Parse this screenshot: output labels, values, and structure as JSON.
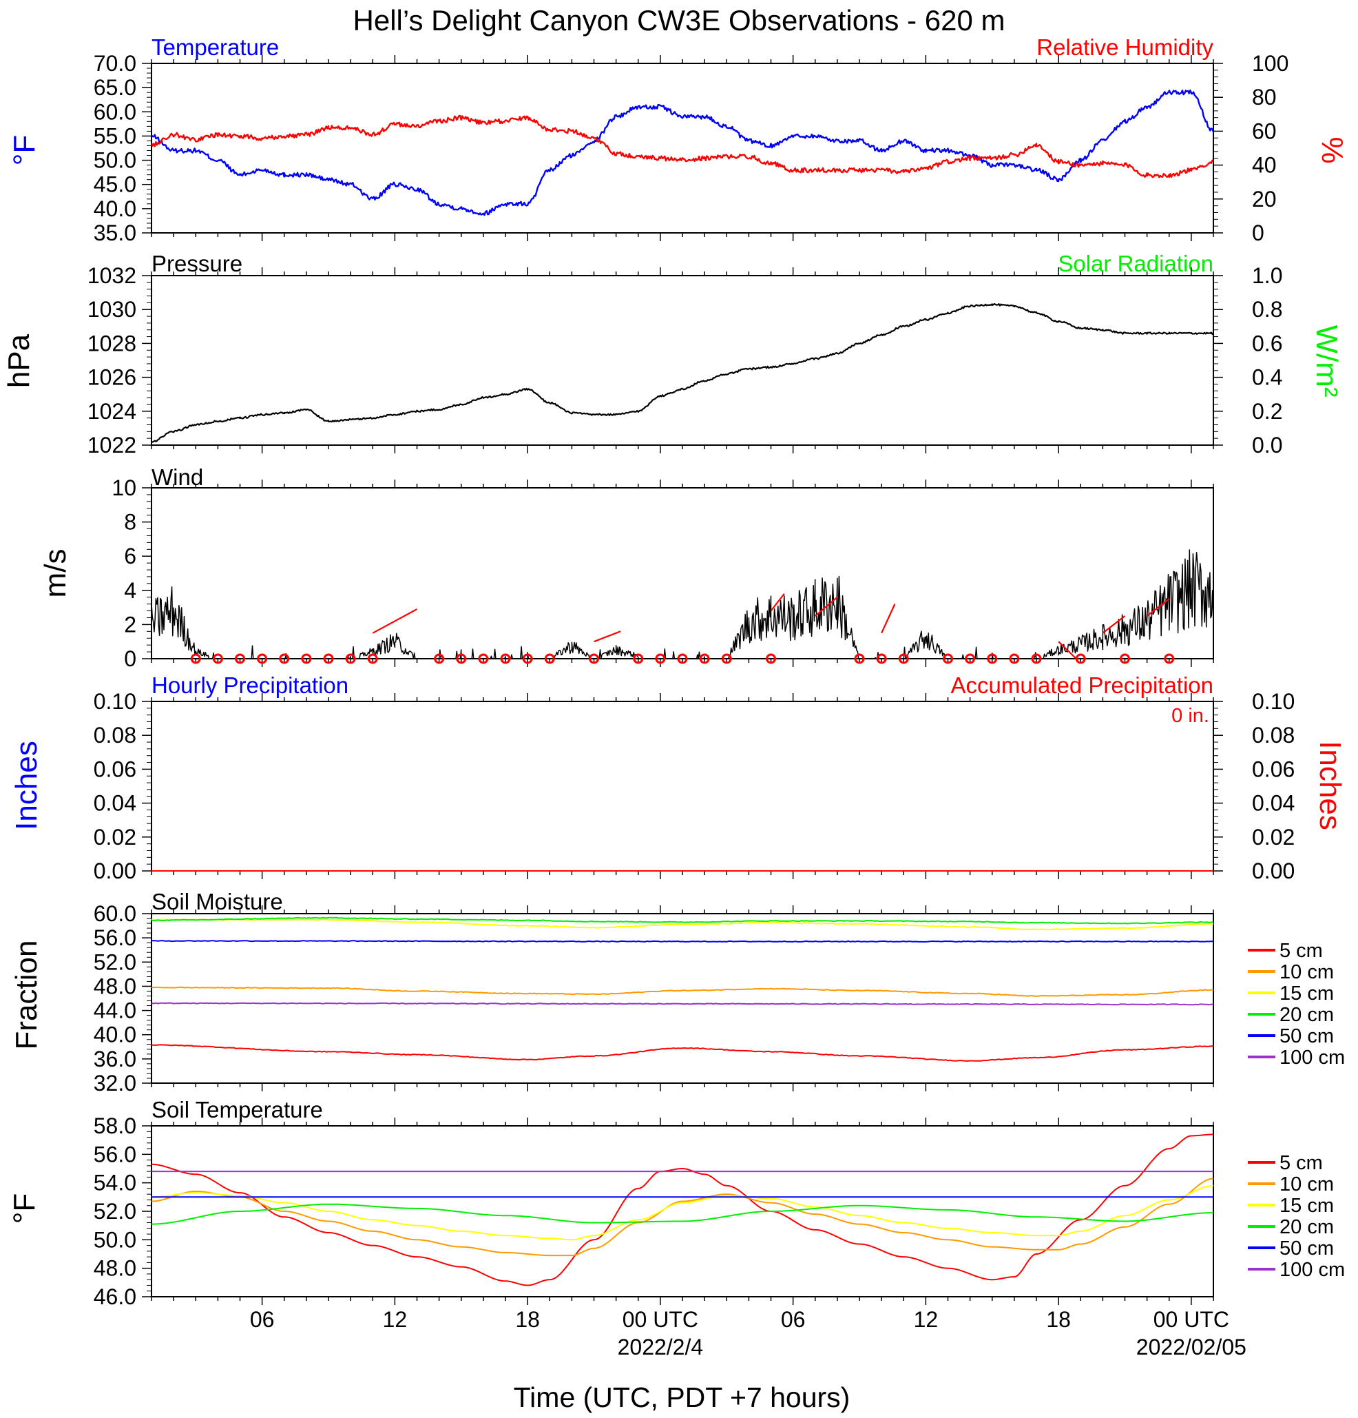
{
  "title": "Hell’s Delight Canyon CW3E Observations - 620 m",
  "xaxis": {
    "label": "Time (UTC, PDT +7 hours)",
    "tick_labels": [
      "06",
      "12",
      "18",
      "00 UTC",
      "06",
      "12",
      "18",
      "00 UTC"
    ],
    "date_labels": [
      "2022/2/4",
      "2022/02/05"
    ]
  },
  "colors": {
    "blue": "#0000ff",
    "red": "#ff0000",
    "green": "#00ee00",
    "black": "#000000",
    "orange": "#ff9900",
    "yellow": "#ffff00",
    "purple": "#9933cc"
  },
  "panels": {
    "temperature": {
      "title_left": "Temperature",
      "title_right": "Relative Humidity",
      "ylabel_left": "°F",
      "ylabel_right": "%",
      "yticks_left": [
        "70.0",
        "65.0",
        "60.0",
        "55.0",
        "50.0",
        "45.0",
        "40.0",
        "35.0"
      ],
      "yticks_right": [
        "100",
        "80",
        "60",
        "40",
        "20",
        "0"
      ]
    },
    "pressure": {
      "title_left": "Pressure",
      "title_right": "Solar Radiation",
      "ylabel_left": "hPa",
      "ylabel_right": "W/m²",
      "yticks_left": [
        "1032",
        "1030",
        "1028",
        "1026",
        "1024",
        "1022"
      ],
      "yticks_right": [
        "1.0",
        "0.8",
        "0.6",
        "0.4",
        "0.2",
        "0.0"
      ]
    },
    "wind": {
      "title_left": "Wind",
      "ylabel_left": "m/s",
      "yticks_left": [
        "10",
        "8",
        "6",
        "4",
        "2",
        "0"
      ]
    },
    "precip": {
      "title_left": "Hourly Precipitation",
      "title_right": "Accumulated Precipitation",
      "accum_text": "0 in.",
      "ylabel_left": "Inches",
      "ylabel_right": "Inches",
      "yticks_left": [
        "0.10",
        "0.08",
        "0.06",
        "0.04",
        "0.02",
        "0.00"
      ],
      "yticks_right": [
        "0.10",
        "0.08",
        "0.06",
        "0.04",
        "0.02",
        "0.00"
      ]
    },
    "soil_moisture": {
      "title_left": "Soil Moisture",
      "ylabel_left": "Fraction",
      "yticks_left": [
        "60.0",
        "56.0",
        "52.0",
        "48.0",
        "44.0",
        "40.0",
        "36.0",
        "32.0"
      ],
      "legend": [
        "5 cm",
        "10 cm",
        "15 cm",
        "20 cm",
        "50 cm",
        "100 cm"
      ]
    },
    "soil_temperature": {
      "title_left": "Soil Temperature",
      "ylabel_left": "°F",
      "yticks_left": [
        "58.0",
        "56.0",
        "54.0",
        "52.0",
        "50.0",
        "48.0",
        "46.0"
      ],
      "legend": [
        "5 cm",
        "10 cm",
        "15 cm",
        "20 cm",
        "50 cm",
        "100 cm"
      ]
    }
  },
  "chart_data": [
    {
      "type": "line",
      "title": "Temperature",
      "ylabel": "°F",
      "ylim": [
        35,
        70
      ],
      "y2label": "%",
      "y2lim": [
        0,
        100
      ],
      "x_unit": "hours since 2022-02-03 01 UTC",
      "xlim": [
        0,
        48
      ],
      "series": [
        {
          "name": "Temperature",
          "axis": "left",
          "color": "#0000ff",
          "x": [
            0,
            1,
            2,
            3,
            4,
            5,
            6,
            7,
            8,
            9,
            10,
            11,
            12,
            13,
            14,
            15,
            16,
            17,
            18,
            19,
            20,
            21,
            22,
            23,
            24,
            25,
            26,
            27,
            28,
            29,
            30,
            31,
            32,
            33,
            34,
            35,
            36,
            37,
            38,
            39,
            40,
            41,
            42,
            43,
            44,
            45,
            46,
            47,
            48
          ],
          "values": [
            55,
            52,
            52,
            50,
            47,
            48,
            47,
            47,
            46,
            45,
            42,
            45,
            44,
            41,
            40,
            39,
            41,
            41,
            48,
            51,
            54,
            59,
            61,
            61,
            59,
            59,
            57,
            54,
            53,
            55,
            55,
            54,
            54,
            52,
            54,
            52,
            52,
            51,
            49,
            49,
            48,
            46,
            50,
            54,
            58,
            61,
            64,
            64,
            56
          ]
        },
        {
          "name": "Relative Humidity",
          "axis": "right",
          "color": "#ff0000",
          "x": [
            0,
            1,
            2,
            3,
            4,
            5,
            6,
            7,
            8,
            9,
            10,
            11,
            12,
            13,
            14,
            15,
            16,
            17,
            18,
            19,
            20,
            21,
            22,
            23,
            24,
            25,
            26,
            27,
            28,
            29,
            30,
            31,
            32,
            33,
            34,
            35,
            36,
            37,
            38,
            39,
            40,
            41,
            42,
            43,
            44,
            45,
            46,
            47,
            48
          ],
          "values": [
            52,
            58,
            55,
            58,
            57,
            56,
            57,
            58,
            62,
            62,
            58,
            64,
            63,
            66,
            68,
            65,
            66,
            68,
            61,
            60,
            56,
            47,
            45,
            44,
            43,
            44,
            45,
            45,
            41,
            37,
            37,
            37,
            37,
            37,
            36,
            38,
            42,
            44,
            44,
            46,
            52,
            42,
            40,
            41,
            40,
            34,
            34,
            37,
            42
          ]
        }
      ]
    },
    {
      "type": "line",
      "title": "Pressure",
      "ylabel": "hPa",
      "ylim": [
        1022,
        1032
      ],
      "y2label": "W/m²",
      "y2lim": [
        0,
        1.0
      ],
      "x_unit": "hours since 2022-02-03 01 UTC",
      "xlim": [
        0,
        48
      ],
      "series": [
        {
          "name": "Pressure",
          "axis": "left",
          "color": "#000000",
          "x": [
            0,
            1,
            2,
            3,
            4,
            5,
            6,
            7,
            8,
            9,
            10,
            11,
            12,
            13,
            14,
            15,
            16,
            17,
            18,
            19,
            20,
            21,
            22,
            23,
            24,
            25,
            26,
            27,
            28,
            29,
            30,
            31,
            32,
            33,
            34,
            35,
            36,
            37,
            38,
            39,
            40,
            41,
            42,
            43,
            44,
            45,
            46,
            47,
            48
          ],
          "values": [
            1022.2,
            1022.8,
            1023.2,
            1023.4,
            1023.6,
            1023.8,
            1023.9,
            1024.1,
            1023.4,
            1023.5,
            1023.6,
            1023.8,
            1024.0,
            1024.1,
            1024.4,
            1024.8,
            1025.0,
            1025.3,
            1024.5,
            1023.9,
            1023.8,
            1023.8,
            1024.0,
            1024.9,
            1025.3,
            1025.8,
            1026.2,
            1026.5,
            1026.6,
            1026.8,
            1027.1,
            1027.4,
            1028.0,
            1028.5,
            1029.0,
            1029.4,
            1029.8,
            1030.2,
            1030.3,
            1030.2,
            1029.8,
            1029.3,
            1028.9,
            1028.8,
            1028.6,
            1028.6,
            1028.6,
            1028.6,
            1028.6
          ]
        }
      ]
    },
    {
      "type": "line",
      "title": "Wind",
      "ylabel": "m/s",
      "ylim": [
        0,
        10
      ],
      "x_unit": "hours since 2022-02-03 01 UTC",
      "xlim": [
        0,
        48
      ],
      "series": [
        {
          "name": "Wind speed",
          "color": "#000000",
          "x": [
            0,
            1,
            2,
            3,
            4,
            5,
            6,
            7,
            8,
            9,
            10,
            11,
            12,
            13,
            14,
            15,
            16,
            17,
            18,
            19,
            20,
            21,
            22,
            23,
            24,
            25,
            26,
            27,
            28,
            29,
            30,
            31,
            32,
            33,
            34,
            35,
            36,
            37,
            38,
            39,
            40,
            41,
            42,
            43,
            44,
            45,
            46,
            47,
            48
          ],
          "values": [
            2.5,
            3.3,
            0.5,
            0,
            0,
            0,
            0,
            0,
            0,
            0,
            0.5,
            1.2,
            0,
            0,
            0,
            0,
            0,
            0,
            0,
            0.9,
            0,
            0.6,
            0.2,
            0,
            0,
            0,
            0,
            2.5,
            3.0,
            2.8,
            3.5,
            4.0,
            0,
            0,
            0,
            1.5,
            0,
            0,
            0,
            0,
            0,
            0.6,
            1.0,
            1.5,
            2.0,
            2.6,
            3.8,
            4.8,
            4.5
          ]
        }
      ]
    },
    {
      "type": "line",
      "title": "Hourly Precipitation",
      "ylabel": "Inches",
      "ylim": [
        0,
        0.1
      ],
      "y2label": "Inches",
      "y2lim": [
        0,
        0.1
      ],
      "x_unit": "hours since 2022-02-03 01 UTC",
      "xlim": [
        0,
        48
      ],
      "series": [
        {
          "name": "Accumulated Precipitation",
          "axis": "right",
          "color": "#ff0000",
          "x": [
            0,
            48
          ],
          "values": [
            0,
            0
          ]
        }
      ]
    },
    {
      "type": "line",
      "title": "Soil Moisture",
      "ylabel": "Fraction",
      "ylim": [
        32,
        60
      ],
      "x_unit": "hours since 2022-02-03 01 UTC",
      "xlim": [
        0,
        48
      ],
      "series": [
        {
          "name": "5 cm",
          "color": "#ff0000",
          "x": [
            0,
            8,
            12,
            17,
            20,
            24,
            28,
            32,
            37,
            40,
            44,
            48
          ],
          "values": [
            38.3,
            37.2,
            36.7,
            35.9,
            36.5,
            37.8,
            37.2,
            36.5,
            35.7,
            36.2,
            37.5,
            38.1
          ]
        },
        {
          "name": "10 cm",
          "color": "#ff9900",
          "x": [
            0,
            8,
            12,
            17,
            20,
            24,
            28,
            32,
            37,
            40,
            44,
            48
          ],
          "values": [
            47.8,
            47.7,
            47.2,
            46.8,
            46.7,
            47.3,
            47.6,
            47.3,
            46.8,
            46.4,
            46.6,
            47.4
          ]
        },
        {
          "name": "15 cm",
          "color": "#ffff00",
          "x": [
            0,
            8,
            12,
            17,
            20,
            24,
            28,
            32,
            37,
            40,
            44,
            48
          ],
          "values": [
            59.0,
            59.0,
            58.6,
            58.0,
            57.7,
            58.2,
            58.5,
            58.3,
            57.8,
            57.4,
            57.6,
            58.3
          ]
        },
        {
          "name": "20 cm",
          "color": "#00ee00",
          "x": [
            0,
            8,
            12,
            17,
            20,
            24,
            28,
            32,
            37,
            40,
            44,
            48
          ],
          "values": [
            58.9,
            59.3,
            59.1,
            58.9,
            58.7,
            58.6,
            58.8,
            58.8,
            58.7,
            58.5,
            58.4,
            58.6
          ]
        },
        {
          "name": "50 cm",
          "color": "#0000ff",
          "x": [
            0,
            24,
            48
          ],
          "values": [
            55.5,
            55.4,
            55.4
          ]
        },
        {
          "name": "100 cm",
          "color": "#9933cc",
          "x": [
            0,
            24,
            48
          ],
          "values": [
            45.2,
            45.1,
            45.0
          ]
        }
      ]
    },
    {
      "type": "line",
      "title": "Soil Temperature",
      "ylabel": "°F",
      "ylim": [
        46,
        58
      ],
      "x_unit": "hours since 2022-02-03 01 UTC",
      "xlim": [
        0,
        48
      ],
      "series": [
        {
          "name": "5 cm",
          "color": "#ff0000",
          "x": [
            0,
            2,
            4,
            6,
            8,
            10,
            12,
            14,
            16,
            17,
            18,
            20,
            22,
            23,
            24,
            25,
            26,
            28,
            30,
            32,
            34,
            36,
            38,
            39,
            40,
            42,
            44,
            46,
            47,
            48
          ],
          "values": [
            55.3,
            54.6,
            53.3,
            51.6,
            50.5,
            49.6,
            48.8,
            48.1,
            47.1,
            46.8,
            47.2,
            50.0,
            53.6,
            54.8,
            55.0,
            54.6,
            53.8,
            52.0,
            50.7,
            49.7,
            48.8,
            48.0,
            47.2,
            47.4,
            49.0,
            51.4,
            53.8,
            56.4,
            57.3,
            57.4
          ]
        },
        {
          "name": "10 cm",
          "color": "#ff9900",
          "x": [
            0,
            2,
            4,
            6,
            8,
            10,
            12,
            14,
            16,
            18,
            19,
            20,
            22,
            24,
            26,
            28,
            30,
            32,
            34,
            36,
            38,
            40,
            41,
            42,
            44,
            46,
            48
          ],
          "values": [
            52.7,
            53.4,
            53.0,
            52.0,
            51.3,
            50.6,
            50.0,
            49.5,
            49.1,
            48.9,
            48.9,
            49.4,
            51.2,
            52.7,
            53.2,
            52.6,
            51.8,
            51.1,
            50.5,
            50.0,
            49.5,
            49.3,
            49.3,
            49.7,
            50.9,
            52.5,
            54.3
          ]
        },
        {
          "name": "15 cm",
          "color": "#ffff00",
          "x": [
            0,
            2,
            4,
            6,
            8,
            10,
            12,
            14,
            16,
            18,
            19,
            20,
            22,
            24,
            26,
            28,
            30,
            32,
            34,
            36,
            38,
            40,
            41,
            42,
            44,
            46,
            48
          ],
          "values": [
            53.0,
            53.3,
            53.1,
            52.6,
            52.0,
            51.4,
            51.0,
            50.6,
            50.3,
            50.1,
            50.0,
            50.3,
            51.4,
            52.6,
            53.1,
            52.9,
            52.3,
            51.7,
            51.2,
            50.8,
            50.5,
            50.3,
            50.3,
            50.6,
            51.7,
            52.8,
            53.8
          ]
        },
        {
          "name": "20 cm",
          "color": "#00ee00",
          "x": [
            0,
            4,
            8,
            12,
            16,
            20,
            24,
            28,
            32,
            36,
            40,
            44,
            48
          ],
          "values": [
            51.1,
            52.0,
            52.5,
            52.2,
            51.7,
            51.2,
            51.3,
            52.0,
            52.4,
            52.1,
            51.6,
            51.3,
            51.9
          ]
        },
        {
          "name": "50 cm",
          "color": "#0000ff",
          "x": [
            0,
            24,
            48
          ],
          "values": [
            53.0,
            53.0,
            53.0
          ]
        },
        {
          "name": "100 cm",
          "color": "#9933cc",
          "x": [
            0,
            24,
            48
          ],
          "values": [
            54.8,
            54.8,
            54.8
          ]
        }
      ]
    }
  ]
}
